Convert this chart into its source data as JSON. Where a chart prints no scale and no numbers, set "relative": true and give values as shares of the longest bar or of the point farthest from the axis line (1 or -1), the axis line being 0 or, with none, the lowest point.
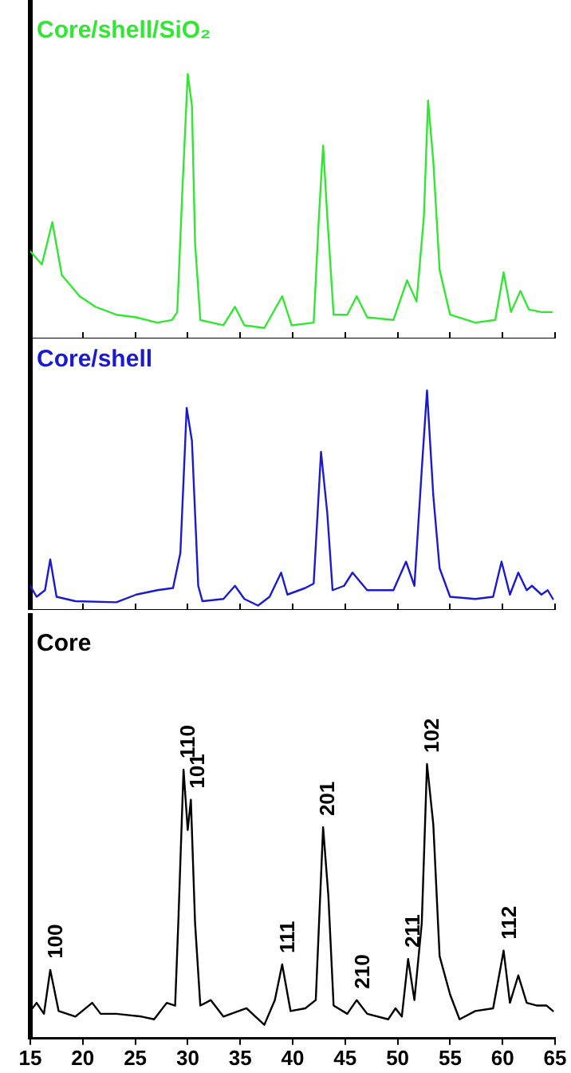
{
  "chart_data": [
    {
      "type": "line",
      "relative": true,
      "xlim": [
        15,
        65
      ],
      "xticks": [
        15,
        20,
        25,
        30,
        35,
        40,
        45,
        50,
        55,
        60,
        65
      ],
      "tick_labels": false,
      "series": [
        {
          "name": "Core/shell/SiO₂",
          "color": "#33e633",
          "x": [
            15,
            16.1,
            17.1,
            18.0,
            19.7,
            21.2,
            23.2,
            25.1,
            27.1,
            28.5,
            29.0,
            29.5,
            30.0,
            30.4,
            30.7,
            31.2,
            33.4,
            34.5,
            35.4,
            37.3,
            39.0,
            39.9,
            42.0,
            42.5,
            42.9,
            43.3,
            43.9,
            45.2,
            46.1,
            47.1,
            49.6,
            50.9,
            51.8,
            52.5,
            52.9,
            53.4,
            54.0,
            55.0,
            57.4,
            59.3,
            60.1,
            60.8,
            61.7,
            62.5,
            63.7,
            64.7
          ],
          "values": [
            0.33,
            0.28,
            0.44,
            0.24,
            0.16,
            0.12,
            0.09,
            0.08,
            0.06,
            0.07,
            0.1,
            0.57,
            1.0,
            0.88,
            0.36,
            0.07,
            0.05,
            0.12,
            0.05,
            0.04,
            0.16,
            0.05,
            0.06,
            0.46,
            0.73,
            0.46,
            0.09,
            0.09,
            0.16,
            0.08,
            0.07,
            0.22,
            0.14,
            0.46,
            0.9,
            0.67,
            0.26,
            0.09,
            0.06,
            0.07,
            0.25,
            0.1,
            0.18,
            0.11,
            0.1,
            0.1
          ]
        }
      ]
    },
    {
      "type": "line",
      "relative": true,
      "xlim": [
        15,
        65
      ],
      "xticks": [
        15,
        20,
        25,
        30,
        35,
        40,
        45,
        50,
        55,
        60,
        65
      ],
      "tick_labels": false,
      "series": [
        {
          "name": "Core/shell",
          "color": "#1a1ad0",
          "x": [
            15,
            15.6,
            16.4,
            16.9,
            17.5,
            19.3,
            23.2,
            25.1,
            27.1,
            28.6,
            29.3,
            29.9,
            30.4,
            31.0,
            31.4,
            33.4,
            34.5,
            35.4,
            36.7,
            37.8,
            38.9,
            39.5,
            41.2,
            42.0,
            42.7,
            43.3,
            43.8,
            44.9,
            45.7,
            47.1,
            49.6,
            50.8,
            51.6,
            52.3,
            52.8,
            53.4,
            54.0,
            55.0,
            57.4,
            59.1,
            59.9,
            60.7,
            61.5,
            62.3,
            62.8,
            63.7,
            64.3,
            64.8
          ],
          "values": [
            0.11,
            0.06,
            0.09,
            0.23,
            0.06,
            0.04,
            0.035,
            0.07,
            0.09,
            0.1,
            0.26,
            0.92,
            0.77,
            0.11,
            0.04,
            0.05,
            0.11,
            0.05,
            0.02,
            0.06,
            0.17,
            0.07,
            0.1,
            0.12,
            0.72,
            0.44,
            0.09,
            0.11,
            0.17,
            0.09,
            0.09,
            0.22,
            0.11,
            0.64,
            1.0,
            0.52,
            0.19,
            0.06,
            0.05,
            0.06,
            0.22,
            0.07,
            0.17,
            0.09,
            0.11,
            0.07,
            0.09,
            0.05
          ]
        }
      ]
    },
    {
      "type": "line",
      "relative": true,
      "xlim": [
        15,
        65
      ],
      "xticks": [
        15,
        20,
        25,
        30,
        35,
        40,
        45,
        50,
        55,
        60,
        65
      ],
      "tick_labels": "x",
      "series": [
        {
          "name": "Core",
          "color": "#000000",
          "x": [
            15,
            15.6,
            16.3,
            16.9,
            17.7,
            19.3,
            20.9,
            21.7,
            23.2,
            25.6,
            26.8,
            28.0,
            28.8,
            29.1,
            29.6,
            30.0,
            30.3,
            30.7,
            31.2,
            32.2,
            33.4,
            35.6,
            37.3,
            38.3,
            39.0,
            39.8,
            41.2,
            42.2,
            42.9,
            43.4,
            43.9,
            45.2,
            46.1,
            47.1,
            49.1,
            49.8,
            50.4,
            51.0,
            51.6,
            52.3,
            52.8,
            53.4,
            54.0,
            55.0,
            55.9,
            57.4,
            59.1,
            60.1,
            60.7,
            61.5,
            62.3,
            63.3,
            64.2,
            64.8
          ],
          "values": [
            0.1,
            0.13,
            0.09,
            0.25,
            0.1,
            0.08,
            0.13,
            0.09,
            0.09,
            0.08,
            0.07,
            0.13,
            0.12,
            0.42,
            0.98,
            0.76,
            0.87,
            0.42,
            0.12,
            0.14,
            0.08,
            0.11,
            0.05,
            0.14,
            0.27,
            0.1,
            0.11,
            0.14,
            0.77,
            0.52,
            0.12,
            0.09,
            0.14,
            0.09,
            0.07,
            0.11,
            0.08,
            0.29,
            0.14,
            0.42,
            1.0,
            0.78,
            0.3,
            0.16,
            0.07,
            0.1,
            0.11,
            0.32,
            0.13,
            0.23,
            0.13,
            0.12,
            0.12,
            0.1
          ]
        }
      ],
      "annotations": [
        {
          "text": "100",
          "x": 17.0,
          "y": 0.25
        },
        {
          "text": "110",
          "x": 29.6,
          "y": 0.98
        },
        {
          "text": "101",
          "x": 30.5,
          "y": 0.87
        },
        {
          "text": "111",
          "x": 39.1,
          "y": 0.27
        },
        {
          "text": "201",
          "x": 42.9,
          "y": 0.77
        },
        {
          "text": "210",
          "x": 46.2,
          "y": 0.14
        },
        {
          "text": "211",
          "x": 51.0,
          "y": 0.29
        },
        {
          "text": "102",
          "x": 52.8,
          "y": 1.0
        },
        {
          "text": "112",
          "x": 60.2,
          "y": 0.32
        }
      ]
    }
  ]
}
